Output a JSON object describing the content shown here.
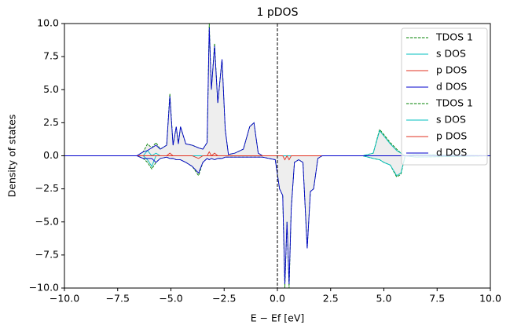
{
  "chart_data": {
    "type": "line",
    "title": "1 pDOS",
    "xlabel": "E − Ef [eV]",
    "ylabel": "Density of states",
    "xlim": [
      -10,
      10
    ],
    "ylim": [
      -10,
      10
    ],
    "xticks": [
      {
        "value": -10,
        "label": "−10.0"
      },
      {
        "value": -7.5,
        "label": "−7.5"
      },
      {
        "value": -5,
        "label": "−5.0"
      },
      {
        "value": -2.5,
        "label": "−2.5"
      },
      {
        "value": 0,
        "label": "0.0"
      },
      {
        "value": 2.5,
        "label": "2.5"
      },
      {
        "value": 5,
        "label": "5.0"
      },
      {
        "value": 7.5,
        "label": "7.5"
      },
      {
        "value": 10,
        "label": "10.0"
      }
    ],
    "yticks": [
      {
        "value": -10,
        "label": "−10.0"
      },
      {
        "value": -7.5,
        "label": "−7.5"
      },
      {
        "value": -5,
        "label": "−5.0"
      },
      {
        "value": -2.5,
        "label": "−2.5"
      },
      {
        "value": 0,
        "label": "0.0"
      },
      {
        "value": 2.5,
        "label": "2.5"
      },
      {
        "value": 5,
        "label": "5.0"
      },
      {
        "value": 7.5,
        "label": "7.5"
      },
      {
        "value": 10,
        "label": "10.0"
      }
    ],
    "vline": 0,
    "legend": "upper right",
    "x": [
      -10,
      -6.6,
      -6.3,
      -6.1,
      -5.9,
      -5.7,
      -5.5,
      -5.2,
      -5.05,
      -4.9,
      -4.75,
      -4.65,
      -4.55,
      -4.3,
      -4,
      -3.7,
      -3.5,
      -3.3,
      -3.2,
      -3.1,
      -2.95,
      -2.8,
      -2.6,
      -2.45,
      -2.3,
      -2,
      -1.6,
      -1.3,
      -1.1,
      -0.9,
      -0.7,
      -0.4,
      -0.1,
      0.1,
      0.25,
      0.35,
      0.45,
      0.55,
      0.65,
      0.8,
      1.0,
      1.2,
      1.4,
      1.55,
      1.7,
      1.9,
      2.1,
      3,
      4,
      4.5,
      4.8,
      5.0,
      5.3,
      5.6,
      5.8,
      6.0,
      6.5,
      10
    ],
    "series": [
      {
        "name": "TDOS 1",
        "color": "#008000",
        "linestyle": "dashed",
        "fill": true,
        "values": [
          0,
          0,
          0.3,
          0.9,
          0.6,
          1.0,
          0.5,
          0.8,
          4.7,
          0.8,
          2.2,
          0.9,
          2.2,
          0.9,
          0.8,
          0.6,
          0.5,
          1.0,
          10,
          5,
          8.5,
          4,
          7.3,
          2,
          0.1,
          0.2,
          0.5,
          2.2,
          2.5,
          0.2,
          0,
          0,
          0,
          0,
          0,
          0,
          0,
          0,
          0,
          0,
          0,
          0,
          0,
          0,
          0,
          0,
          0,
          0,
          0,
          0.2,
          2.0,
          1.6,
          1.0,
          0.5,
          0.2,
          0,
          0.1,
          0
        ]
      },
      {
        "name": "s DOS",
        "color": "#00bfbf",
        "linestyle": "solid",
        "values": [
          0,
          0,
          0,
          0.4,
          0,
          0.2,
          0,
          0,
          0,
          0,
          0,
          0,
          0,
          0,
          0,
          0,
          0,
          0,
          0,
          0,
          0,
          0,
          0,
          0,
          0,
          0,
          0,
          0,
          0,
          0,
          0,
          0,
          0,
          0,
          0,
          0,
          0,
          0,
          0,
          0,
          0,
          0,
          0,
          0,
          0,
          0,
          0,
          0,
          0,
          0.2,
          1.9,
          1.5,
          0.9,
          0.4,
          0.2,
          0,
          0.1,
          0
        ]
      },
      {
        "name": "p DOS",
        "color": "#e03020",
        "linestyle": "solid",
        "values": [
          0,
          0,
          0,
          0,
          0,
          0,
          0,
          0,
          0.2,
          0,
          0,
          0,
          0,
          0,
          0,
          0,
          0,
          0,
          0.3,
          0,
          0.2,
          0,
          0,
          0,
          0,
          0,
          0,
          0,
          0,
          0,
          0,
          0,
          0,
          0,
          0,
          0,
          0,
          0,
          0,
          0,
          0,
          0,
          0,
          0,
          0,
          0,
          0,
          0,
          0,
          0,
          0,
          0,
          0,
          0,
          0,
          0,
          0,
          0
        ]
      },
      {
        "name": "d DOS",
        "color": "#0000cc",
        "linestyle": "solid",
        "values": [
          0,
          0,
          0.3,
          0.4,
          0.6,
          0.8,
          0.5,
          0.8,
          4.5,
          0.8,
          2.2,
          0.9,
          2.2,
          0.9,
          0.8,
          0.6,
          0.5,
          1.0,
          9.7,
          5,
          8.3,
          4,
          7.3,
          2,
          0.1,
          0.2,
          0.5,
          2.2,
          2.5,
          0.2,
          0,
          0,
          0,
          0,
          0,
          0,
          0,
          0,
          0,
          0,
          0,
          0,
          0,
          0,
          0,
          0,
          0,
          0,
          0,
          0,
          0,
          0,
          0,
          0,
          0,
          0,
          0,
          0
        ]
      },
      {
        "name": "TDOS 1",
        "color": "#008000",
        "linestyle": "dashed",
        "fill": true,
        "values": [
          0,
          0,
          -0.2,
          -0.5,
          -1.0,
          -0.5,
          -0.2,
          -0.1,
          -0.2,
          -0.2,
          -0.3,
          -0.3,
          -0.3,
          -0.5,
          -0.8,
          -1.5,
          -0.5,
          -0.2,
          -0.3,
          -0.2,
          -0.3,
          -0.2,
          -0.2,
          -0.1,
          -0.1,
          -0.1,
          -0.1,
          -0.1,
          -0.1,
          -0.1,
          -0.1,
          -0.2,
          -0.3,
          -2.5,
          -3,
          -10,
          -5,
          -10,
          -4,
          -0.5,
          -0.3,
          -0.5,
          -7,
          -2.7,
          -2.5,
          -0.2,
          0,
          0,
          0,
          -0.2,
          -0.3,
          -0.5,
          -0.7,
          -1.6,
          -1.4,
          0,
          -0.1,
          0
        ]
      },
      {
        "name": "s DOS",
        "color": "#00bfbf",
        "linestyle": "solid",
        "values": [
          0,
          0,
          0,
          -0.3,
          -0.8,
          0,
          0,
          0,
          0,
          0,
          0,
          0,
          0,
          0,
          0,
          0,
          0,
          0,
          0,
          0,
          0,
          0,
          0,
          0,
          0,
          0,
          0,
          0,
          0,
          0,
          0,
          0,
          0,
          0,
          0,
          0,
          0,
          0,
          0,
          0,
          0,
          0,
          0,
          0,
          0,
          0,
          0,
          0,
          0,
          -0.2,
          -0.3,
          -0.5,
          -0.7,
          -1.5,
          -1.3,
          0,
          -0.1,
          0
        ]
      },
      {
        "name": "p DOS",
        "color": "#e03020",
        "linestyle": "solid",
        "values": [
          0,
          0,
          0,
          0,
          0,
          0,
          0,
          0,
          0,
          0,
          0,
          0,
          0,
          0,
          0,
          -0.2,
          0,
          0,
          0,
          0,
          0,
          0,
          0,
          0,
          0,
          0,
          0,
          0,
          0,
          0,
          0,
          0,
          0,
          0,
          0,
          -0.3,
          0,
          -0.3,
          0,
          0,
          0,
          0,
          0,
          0,
          0,
          0,
          0,
          0,
          0,
          0,
          0,
          0,
          0,
          0,
          0,
          0,
          0,
          0
        ]
      },
      {
        "name": "d DOS",
        "color": "#0000cc",
        "linestyle": "solid",
        "values": [
          0,
          0,
          -0.2,
          -0.2,
          -0.2,
          -0.5,
          -0.2,
          -0.1,
          -0.2,
          -0.2,
          -0.3,
          -0.3,
          -0.3,
          -0.5,
          -0.8,
          -1.3,
          -0.5,
          -0.2,
          -0.3,
          -0.2,
          -0.3,
          -0.2,
          -0.2,
          -0.1,
          -0.1,
          -0.1,
          -0.1,
          -0.1,
          -0.1,
          -0.1,
          -0.1,
          -0.2,
          -0.3,
          -2.5,
          -3,
          -9.7,
          -5,
          -9.7,
          -4,
          -0.5,
          -0.3,
          -0.5,
          -7,
          -2.7,
          -2.5,
          -0.2,
          0,
          0,
          0,
          0,
          0,
          0,
          0,
          0,
          0,
          0,
          0,
          0
        ]
      }
    ]
  }
}
